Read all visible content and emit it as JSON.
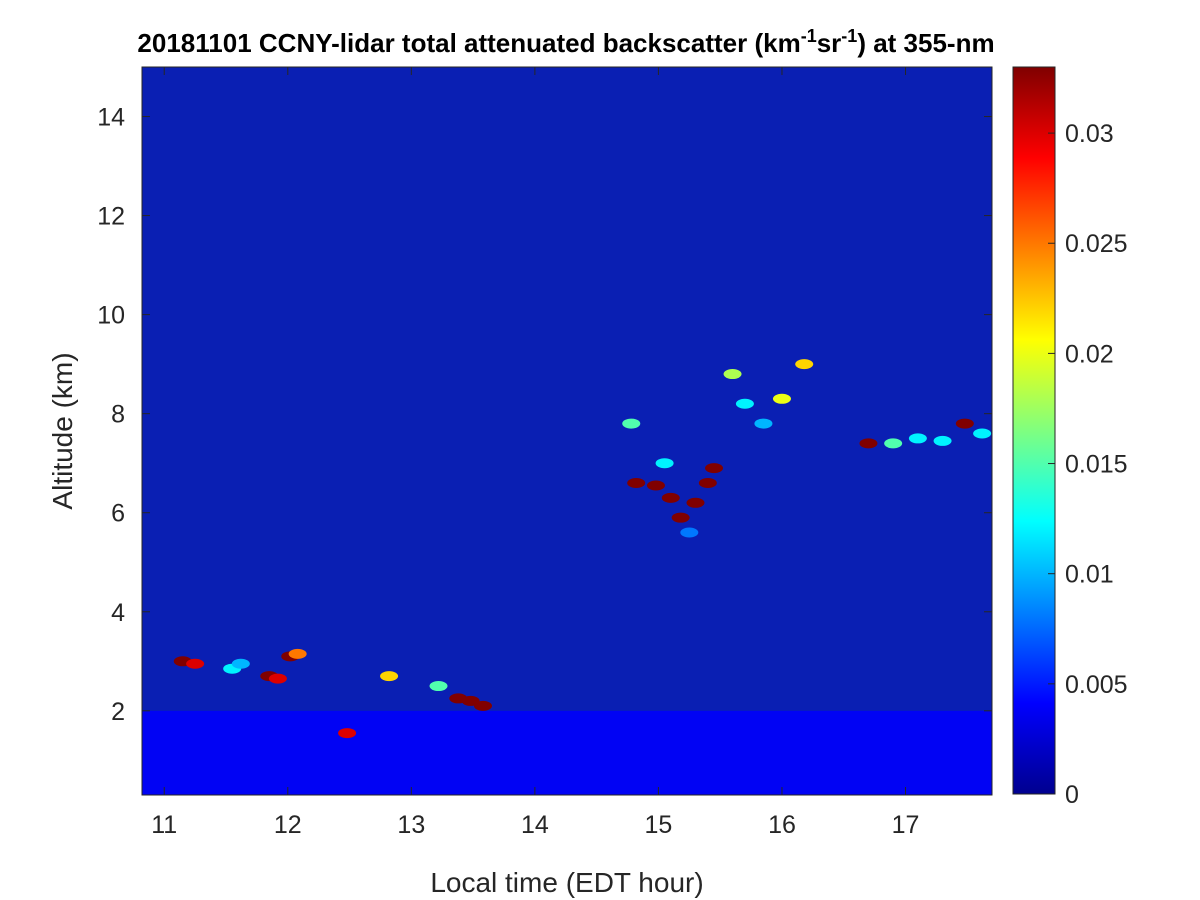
{
  "chart_data": {
    "type": "heatmap",
    "title_parts": {
      "pre": "20181101 CCNY-lidar total attenuated backscatter (km",
      "sup1": "-1",
      "mid": "sr",
      "sup2": "-1",
      "post": ") at 355-nm"
    },
    "xlabel": "Local time (EDT hour)",
    "ylabel": "Altitude (km)",
    "xlim": [
      10.82,
      17.7
    ],
    "ylim": [
      0.3,
      15.0
    ],
    "xticks": [
      "11",
      "12",
      "13",
      "14",
      "15",
      "16",
      "17"
    ],
    "yticks": [
      "2",
      "4",
      "6",
      "8",
      "10",
      "12",
      "14"
    ],
    "colorbar": {
      "colormap": "jet",
      "clim": [
        0,
        0.033
      ],
      "ticks": [
        "0",
        "0.005",
        "0.01",
        "0.015",
        "0.02",
        "0.025",
        "0.03"
      ]
    },
    "background_value": 0.0008,
    "boundary_layer": {
      "top_km": 2.0,
      "value": 0.004
    },
    "features": [
      {
        "time": 11.15,
        "alt": 3.0,
        "value": 0.033
      },
      {
        "time": 11.25,
        "alt": 2.95,
        "value": 0.03
      },
      {
        "time": 11.55,
        "alt": 2.85,
        "value": 0.012
      },
      {
        "time": 11.62,
        "alt": 2.95,
        "value": 0.01
      },
      {
        "time": 11.85,
        "alt": 2.7,
        "value": 0.033
      },
      {
        "time": 11.92,
        "alt": 2.65,
        "value": 0.03
      },
      {
        "time": 12.02,
        "alt": 3.1,
        "value": 0.033
      },
      {
        "time": 12.08,
        "alt": 3.15,
        "value": 0.025
      },
      {
        "time": 12.48,
        "alt": 1.55,
        "value": 0.03
      },
      {
        "time": 12.82,
        "alt": 2.7,
        "value": 0.022
      },
      {
        "time": 13.38,
        "alt": 2.25,
        "value": 0.033
      },
      {
        "time": 13.48,
        "alt": 2.2,
        "value": 0.033
      },
      {
        "time": 13.58,
        "alt": 2.1,
        "value": 0.033
      },
      {
        "time": 13.22,
        "alt": 2.5,
        "value": 0.015
      },
      {
        "time": 14.78,
        "alt": 7.8,
        "value": 0.015
      },
      {
        "time": 14.82,
        "alt": 6.6,
        "value": 0.033
      },
      {
        "time": 14.98,
        "alt": 6.55,
        "value": 0.033
      },
      {
        "time": 15.1,
        "alt": 6.3,
        "value": 0.033
      },
      {
        "time": 15.18,
        "alt": 5.9,
        "value": 0.033
      },
      {
        "time": 15.3,
        "alt": 6.2,
        "value": 0.033
      },
      {
        "time": 15.4,
        "alt": 6.6,
        "value": 0.033
      },
      {
        "time": 15.45,
        "alt": 6.9,
        "value": 0.033
      },
      {
        "time": 15.05,
        "alt": 7.0,
        "value": 0.012
      },
      {
        "time": 15.25,
        "alt": 5.6,
        "value": 0.008
      },
      {
        "time": 15.6,
        "alt": 8.8,
        "value": 0.018
      },
      {
        "time": 15.7,
        "alt": 8.2,
        "value": 0.012
      },
      {
        "time": 15.85,
        "alt": 7.8,
        "value": 0.01
      },
      {
        "time": 16.0,
        "alt": 8.3,
        "value": 0.02
      },
      {
        "time": 16.18,
        "alt": 9.0,
        "value": 0.022
      },
      {
        "time": 16.7,
        "alt": 7.4,
        "value": 0.033
      },
      {
        "time": 16.9,
        "alt": 7.4,
        "value": 0.015
      },
      {
        "time": 17.1,
        "alt": 7.5,
        "value": 0.012
      },
      {
        "time": 17.3,
        "alt": 7.45,
        "value": 0.012
      },
      {
        "time": 17.48,
        "alt": 7.8,
        "value": 0.033
      },
      {
        "time": 17.62,
        "alt": 7.6,
        "value": 0.012
      }
    ]
  }
}
